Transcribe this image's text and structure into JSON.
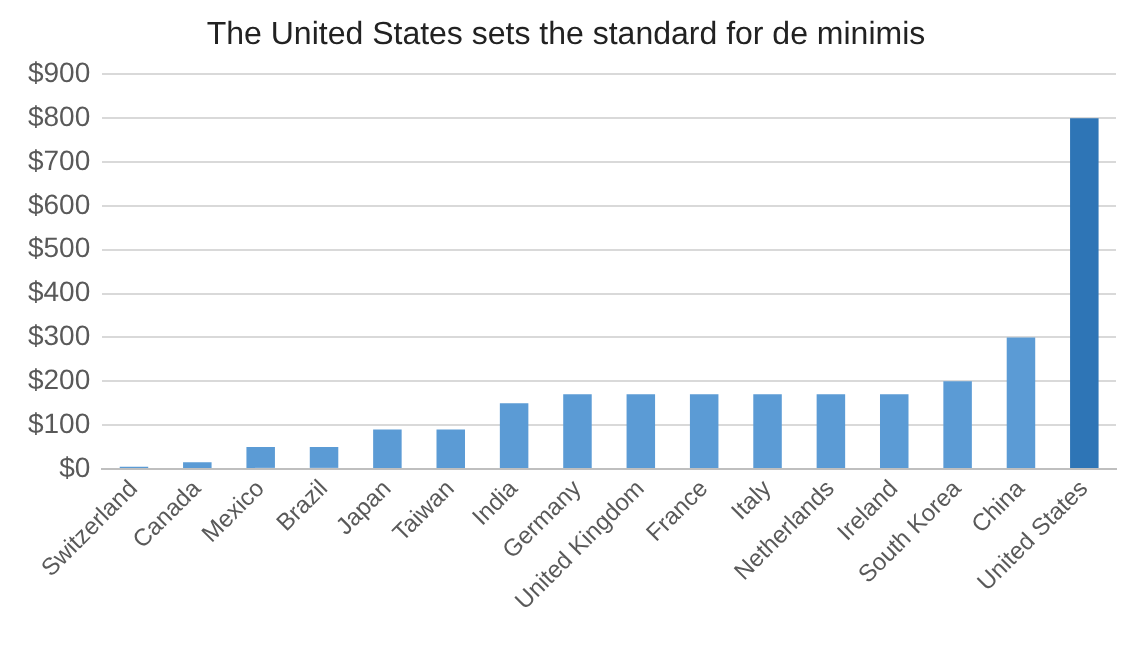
{
  "chart_data": {
    "type": "bar",
    "title": "The United States sets the standard for de minimis",
    "categories": [
      "Switzerland",
      "Canada",
      "Mexico",
      "Brazil",
      "Japan",
      "Taiwan",
      "India",
      "Germany",
      "United Kingdom",
      "France",
      "Italy",
      "Netherlands",
      "Ireland",
      "South Korea",
      "China",
      "United States"
    ],
    "values": [
      5,
      15,
      50,
      50,
      90,
      90,
      150,
      170,
      170,
      170,
      170,
      170,
      170,
      200,
      300,
      800
    ],
    "colors": [
      "#5b9bd5",
      "#5b9bd5",
      "#5b9bd5",
      "#5b9bd5",
      "#5b9bd5",
      "#5b9bd5",
      "#5b9bd5",
      "#5b9bd5",
      "#5b9bd5",
      "#5b9bd5",
      "#5b9bd5",
      "#5b9bd5",
      "#5b9bd5",
      "#5b9bd5",
      "#5b9bd5",
      "#2e75b6"
    ],
    "ylim": [
      0,
      900
    ],
    "yticks": [
      {
        "value": 0,
        "label": "$0"
      },
      {
        "value": 100,
        "label": "$100"
      },
      {
        "value": 200,
        "label": "$200"
      },
      {
        "value": 300,
        "label": "$300"
      },
      {
        "value": 400,
        "label": "$400"
      },
      {
        "value": 500,
        "label": "$500"
      },
      {
        "value": 600,
        "label": "$600"
      },
      {
        "value": 700,
        "label": "$700"
      },
      {
        "value": 800,
        "label": "$800"
      },
      {
        "value": 900,
        "label": "$900"
      }
    ],
    "grid": "y"
  }
}
